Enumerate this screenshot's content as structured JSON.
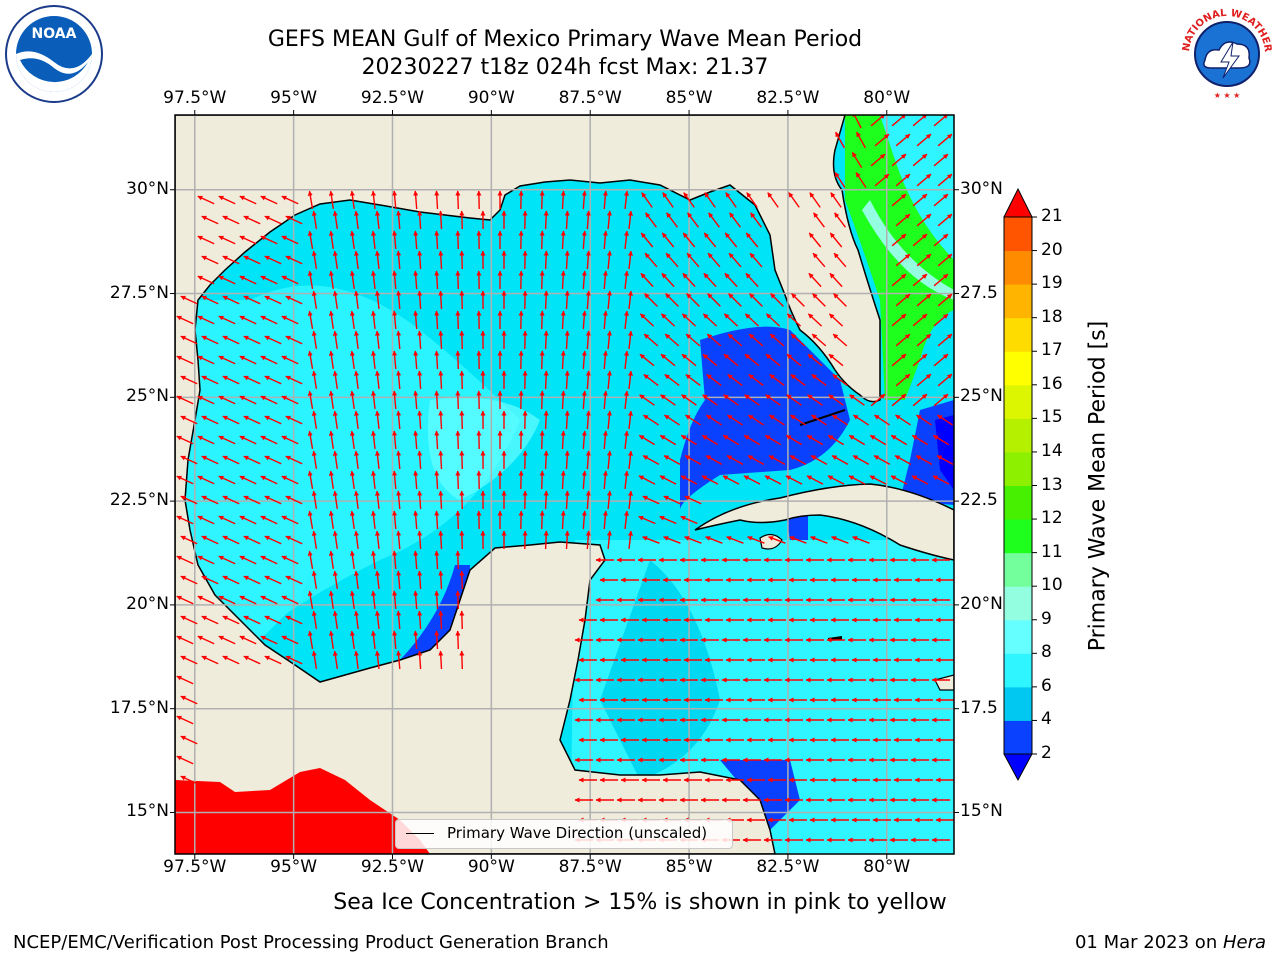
{
  "title": {
    "line1": "GEFS MEAN Gulf of Mexico Primary Wave Mean Period",
    "line2": "20230227 t18z 024h fcst   Max: 21.37"
  },
  "subtitle": "Sea Ice Concentration > 15% is shown in pink to yellow",
  "footer": {
    "left": "NCEP/EMC/Verification Post Processing Product Generation Branch",
    "right_date": "01 Mar 2023 on ",
    "right_host": "Hera"
  },
  "map": {
    "lon_range": [
      -98,
      -78.3
    ],
    "lat_range": [
      14,
      31.8
    ],
    "lon_ticks": [
      "97.5°W",
      "95°W",
      "92.5°W",
      "90°W",
      "87.5°W",
      "85°W",
      "82.5°W",
      "80°W"
    ],
    "lat_ticks_left": [
      "30°N",
      "27.5°N",
      "25°N",
      "22.5°N",
      "20°N",
      "17.5°N",
      "15°N"
    ],
    "lat_ticks_right": [
      "30°N",
      "27.5",
      "25°N",
      "22.5",
      "20°N",
      "17.5",
      "15°N"
    ],
    "legend_label": "Primary Wave Direction (unscaled)",
    "colors": {
      "land": "#efecdc",
      "arrow": "#ff0000",
      "grid": "#b0b0b0"
    }
  },
  "colorbar": {
    "label": "Primary Wave Mean Period [s]",
    "ticks": [
      "2",
      "4",
      "6",
      "8",
      "9",
      "10",
      "11",
      "12",
      "13",
      "14",
      "15",
      "16",
      "17",
      "18",
      "19",
      "20",
      "21"
    ],
    "colors": [
      "#0a41ff",
      "#00c8f0",
      "#2ef5ff",
      "#66ffff",
      "#94ffe0",
      "#73ff9b",
      "#1eff1e",
      "#46f000",
      "#8cf000",
      "#b4f000",
      "#dcf500",
      "#ffff00",
      "#ffdc00",
      "#ffb400",
      "#ff8c00",
      "#ff5500",
      "#ff2800"
    ],
    "under_color": "#0000ff",
    "over_color": "#ff0000"
  },
  "logos": {
    "noaa_text": "NOAA",
    "nws_text": "NATIONAL WEATHER SERVICE"
  }
}
